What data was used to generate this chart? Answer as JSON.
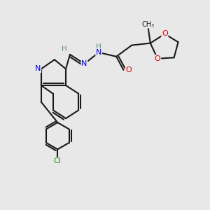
{
  "background_color": "#e8e8e8",
  "atom_colors": {
    "C": "#1a1a1a",
    "N": "#0000ee",
    "O": "#dd0000",
    "Cl": "#228822",
    "H": "#4a8f8f"
  },
  "bond_color": "#1a1a1a",
  "bond_width": 1.5,
  "figsize": [
    3.0,
    3.0
  ],
  "dpi": 100
}
